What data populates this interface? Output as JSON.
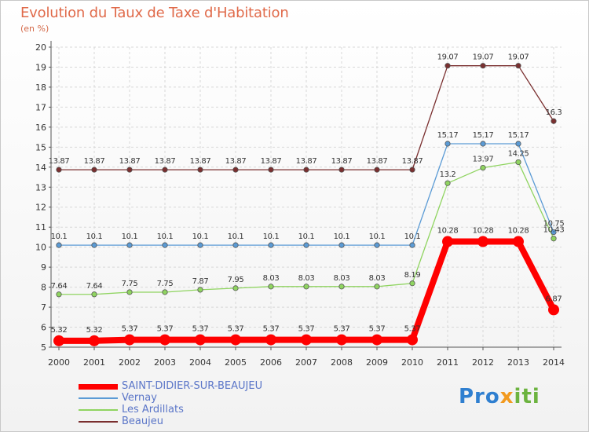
{
  "chart_data": {
    "type": "line",
    "title": "Evolution du Taux de Taxe d'Habitation",
    "unit_label": "(en %)",
    "x": [
      "2000",
      "2001",
      "2002",
      "2003",
      "2004",
      "2005",
      "2006",
      "2007",
      "2008",
      "2009",
      "2010",
      "2011",
      "2012",
      "2013",
      "2014"
    ],
    "ylim": [
      5,
      20
    ],
    "yticks": [
      "5",
      "6",
      "7",
      "8",
      "9",
      "10",
      "11",
      "12",
      "13",
      "14",
      "15",
      "16",
      "17",
      "18",
      "19",
      "20"
    ],
    "grid": true,
    "legend_position": "bottom-left",
    "series": [
      {
        "name": "SAINT-DIDIER-SUR-BEAUJEU",
        "color": "#ff0000",
        "values": [
          5.32,
          5.32,
          5.37,
          5.37,
          5.37,
          5.37,
          5.37,
          5.37,
          5.37,
          5.37,
          5.37,
          10.28,
          10.28,
          10.28,
          6.87
        ],
        "labels": [
          "5.32",
          "5.32",
          "5.37",
          "5.37",
          "5.37",
          "5.37",
          "5.37",
          "5.37",
          "5.37",
          "5.37",
          "5.37",
          "10.28",
          "10.28",
          "10.28",
          "6.87"
        ]
      },
      {
        "name": "Vernay",
        "color": "#5b9bd5",
        "values": [
          10.1,
          10.1,
          10.1,
          10.1,
          10.1,
          10.1,
          10.1,
          10.1,
          10.1,
          10.1,
          10.1,
          15.17,
          15.17,
          15.17,
          10.75
        ],
        "labels": [
          "10.1",
          "10.1",
          "10.1",
          "10.1",
          "10.1",
          "10.1",
          "10.1",
          "10.1",
          "10.1",
          "10.1",
          "10.1",
          "15.17",
          "15.17",
          "15.17",
          "10.75"
        ]
      },
      {
        "name": "Les Ardillats",
        "color": "#8fd460",
        "values": [
          7.64,
          7.64,
          7.75,
          7.75,
          7.87,
          7.95,
          8.03,
          8.03,
          8.03,
          8.03,
          8.19,
          13.2,
          13.97,
          14.25,
          10.43
        ],
        "labels": [
          "7.64",
          "7.64",
          "7.75",
          "7.75",
          "7.87",
          "7.95",
          "8.03",
          "8.03",
          "8.03",
          "8.03",
          "8.19",
          "13.2",
          "13.97",
          "14.25",
          "10.43"
        ]
      },
      {
        "name": "Beaujeu",
        "color": "#7a2f2f",
        "values": [
          13.87,
          13.87,
          13.87,
          13.87,
          13.87,
          13.87,
          13.87,
          13.87,
          13.87,
          13.87,
          13.87,
          19.07,
          19.07,
          19.07,
          16.3
        ],
        "labels": [
          "13.87",
          "13.87",
          "13.87",
          "13.87",
          "13.87",
          "13.87",
          "13.87",
          "13.87",
          "13.87",
          "13.87",
          "13.87",
          "19.07",
          "19.07",
          "19.07",
          "16.3"
        ]
      }
    ]
  },
  "logo": {
    "part1": "Pro",
    "part2": "x",
    "part3": "iti"
  }
}
